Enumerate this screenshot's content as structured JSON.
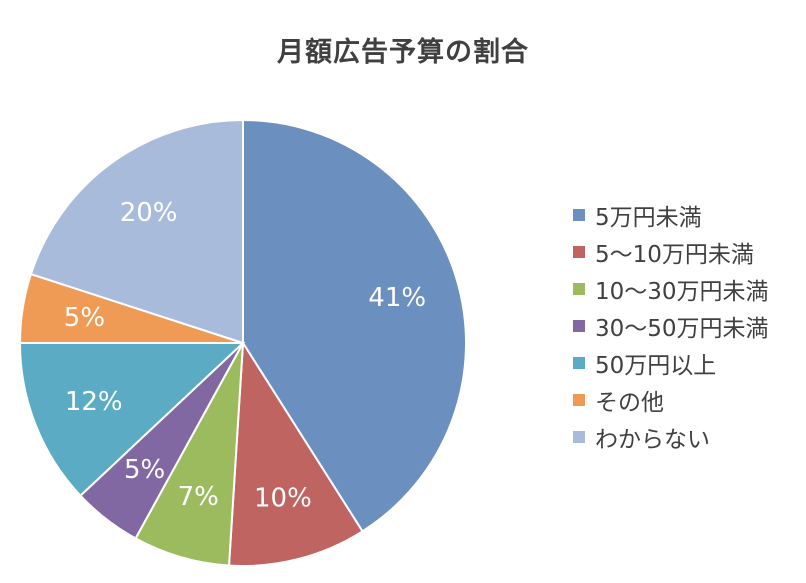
{
  "chart_data": {
    "type": "pie",
    "title": "月額広告予算の割合",
    "categories": [
      "5万円未満",
      "5～10万円未満",
      "10～30万円未満",
      "30～50万円未満",
      "50万円以上",
      "その他",
      "わからない"
    ],
    "values": [
      41,
      10,
      7,
      5,
      12,
      5,
      20
    ],
    "data_labels": [
      "41%",
      "10%",
      "7%",
      "5%",
      "12%",
      "5%",
      "20%"
    ],
    "colors": [
      "#6b8fbf",
      "#c06462",
      "#9cbb5e",
      "#8268a2",
      "#5aabc3",
      "#f09b55",
      "#a9bbdb"
    ],
    "start_angle": "12 o'clock",
    "direction": "clockwise",
    "legend": "right"
  }
}
